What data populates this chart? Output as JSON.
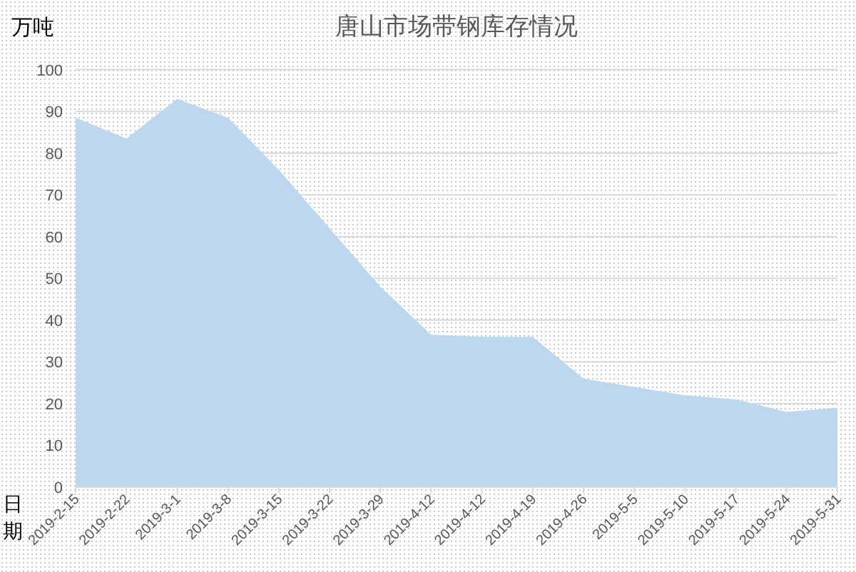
{
  "chart_data": {
    "type": "area",
    "title": "唐山市场带钢库存情况",
    "xlabel": "日期",
    "ylabel": "万吨",
    "categories": [
      "2019-2-15",
      "2019-2-22",
      "2019-3-1",
      "2019-3-8",
      "2019-3-15",
      "2019-3-22",
      "2019-3-29",
      "2019-4-12",
      "2019-4-12",
      "2019-4-19",
      "2019-4-26",
      "2019-5-5",
      "2019-5-10",
      "2019-5-17",
      "2019-5-24",
      "2019-5-31"
    ],
    "values": [
      88.5,
      83.5,
      93,
      88.5,
      76,
      62,
      48,
      36.5,
      36,
      36,
      26,
      24,
      22,
      21,
      18,
      19
    ],
    "color": "#bdd7ee",
    "ylim": [
      0,
      100
    ],
    "yticks": [
      0,
      10,
      20,
      30,
      40,
      50,
      60,
      70,
      80,
      90,
      100
    ],
    "grid": "y"
  }
}
